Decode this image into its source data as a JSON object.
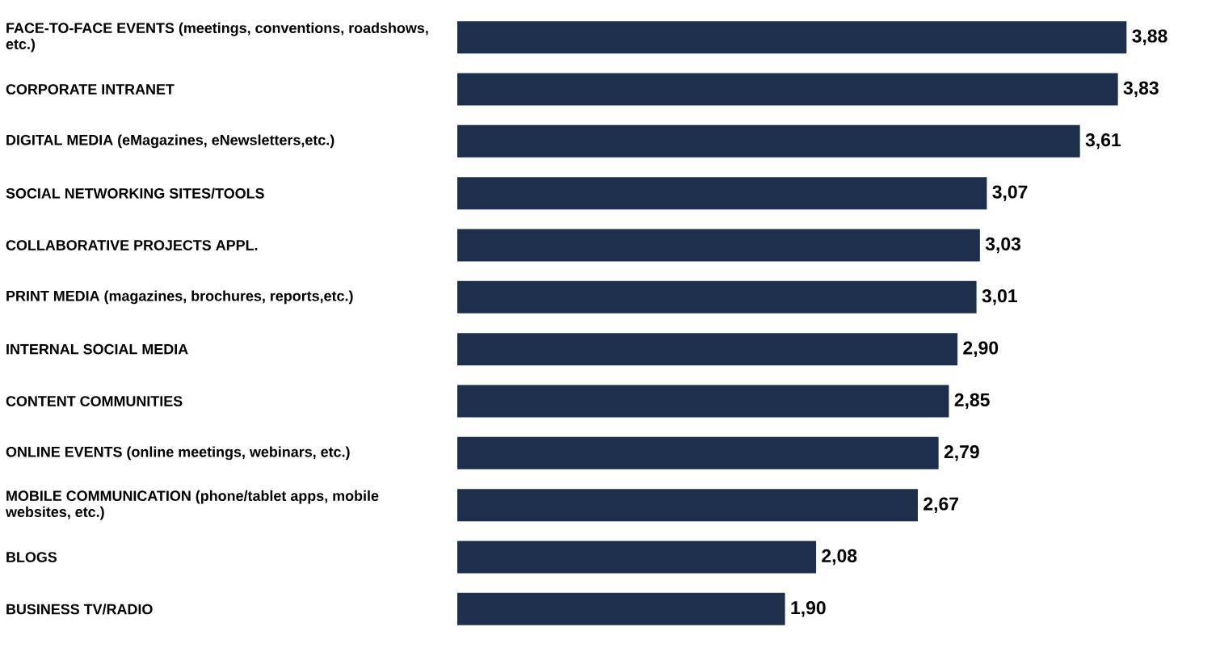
{
  "chart_data": {
    "type": "bar",
    "orientation": "horizontal",
    "color": "#1d2f4b",
    "categories": [
      "FACE-TO-FACE EVENTS (meetings, conventions, roadshows, etc.)",
      "CORPORATE INTRANET",
      "DIGITAL MEDIA (eMagazines, eNewsletters,etc.)",
      "SOCIAL NETWORKING SITES/TOOLS",
      "COLLABORATIVE PROJECTS APPL.",
      "PRINT MEDIA (magazines, brochures, reports,etc.)",
      "INTERNAL SOCIAL MEDIA",
      "CONTENT COMMUNITIES",
      "ONLINE EVENTS (online meetings, webinars, etc.)",
      "MOBILE COMMUNICATION (phone/tablet apps, mobile websites, etc.)",
      "BLOGS",
      "BUSINESS TV/RADIO"
    ],
    "values": [
      3.88,
      3.83,
      3.61,
      3.07,
      3.03,
      3.01,
      2.9,
      2.85,
      2.79,
      2.67,
      2.08,
      1.9
    ],
    "value_labels": [
      "3,88",
      "3,83",
      "3,61",
      "3,07",
      "3,03",
      "3,01",
      "2,90",
      "2,85",
      "2,79",
      "2,67",
      "2,08",
      "1,90"
    ]
  }
}
